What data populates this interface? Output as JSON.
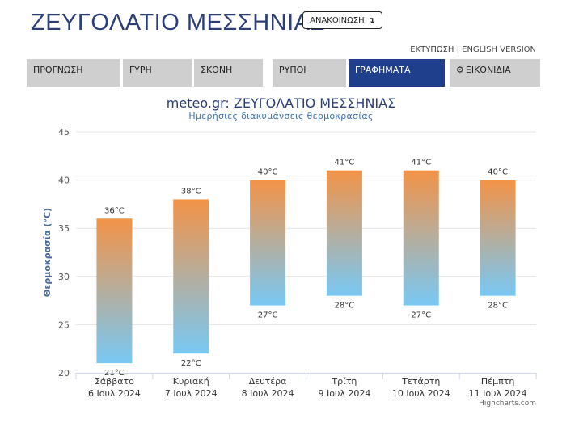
{
  "header": {
    "title": "ΖΕΥΓΟΛΑΤΙΟ ΜΕΣΣΗΝΙΑΣ",
    "announce_label": "ΑΝΑΚΟΙΝΩΣΗ",
    "announce_arrow": "↴",
    "print_label": "ΕΚΤΥΠΩΣΗ",
    "separator": "|",
    "english_label": "ENGLISH VERSION"
  },
  "nav": {
    "tabs": [
      {
        "label": "ΠΡΟΓΝΩΣΗ",
        "active": false
      },
      {
        "label": "ΓΥΡΗ",
        "active": false
      },
      {
        "label": "ΣΚΟΝΗ",
        "active": false
      },
      {
        "label": "ΡΥΠΟΙ",
        "active": false
      },
      {
        "label": "ΓΡΑΦΗΜΑΤΑ",
        "active": true
      },
      {
        "label": "ΕΙΚΟΝΙΔΙΑ",
        "active": false,
        "icon": "gear-icon"
      }
    ]
  },
  "credits": "Highcharts.com",
  "colors": {
    "bar_top": "#f39347",
    "bar_bottom": "#78c8f4",
    "active_tab": "#1f3e8c",
    "title": "#2c3e78"
  },
  "chart_data": {
    "type": "columnrange",
    "title": "meteo.gr: ΖΕΥΓΟΛΑΤΙΟ ΜΕΣΣΗΝΙΑΣ",
    "subtitle": "Ημερήσιες διακυμάνσεις θερμοκρασίας",
    "ylabel": "Θερμοκρασία (°C)",
    "xlabel": "",
    "ylim": [
      20,
      45
    ],
    "yticks": [
      20,
      25,
      30,
      35,
      40,
      45
    ],
    "grid": true,
    "unit": "°C",
    "categories": [
      {
        "day": "Σάββατο",
        "date": "6 Ιουλ 2024"
      },
      {
        "day": "Κυριακή",
        "date": "7 Ιουλ 2024"
      },
      {
        "day": "Δευτέρα",
        "date": "8 Ιουλ 2024"
      },
      {
        "day": "Τρίτη",
        "date": "9 Ιουλ 2024"
      },
      {
        "day": "Τετάρτη",
        "date": "10 Ιουλ 2024"
      },
      {
        "day": "Πέμπτη",
        "date": "11 Ιουλ 2024"
      }
    ],
    "series": [
      {
        "low": [
          21,
          22,
          27,
          28,
          27,
          28
        ],
        "high": [
          36,
          38,
          40,
          41,
          41,
          40
        ]
      }
    ]
  }
}
